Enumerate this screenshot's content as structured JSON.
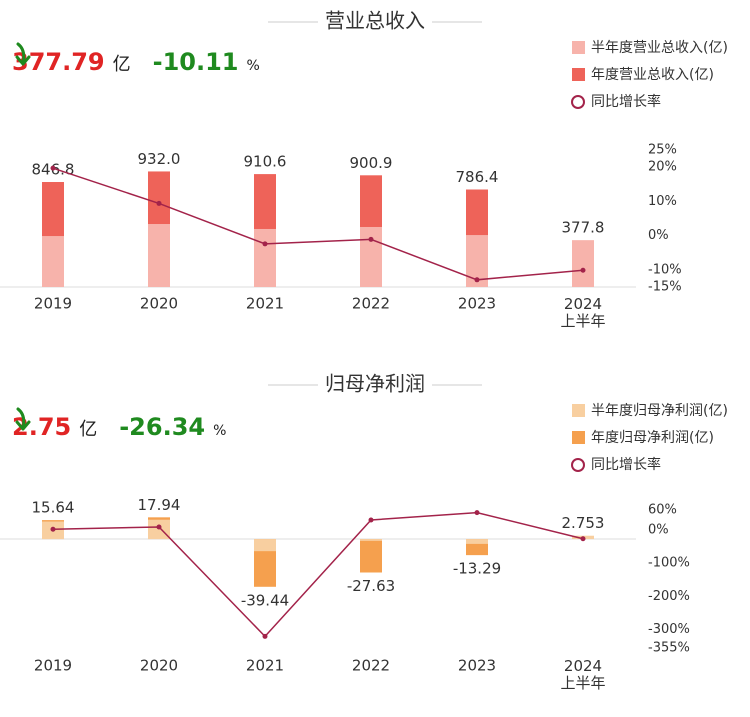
{
  "chart_data": [
    {
      "type": "bar",
      "title": "营业总收入",
      "headline": {
        "value": "377.79",
        "unit": "亿",
        "change": "-10.11",
        "change_unit": "%"
      },
      "categories": [
        "2019",
        "2020",
        "2021",
        "2022",
        "2023",
        "2024\n上半年"
      ],
      "ylim": [
        0,
        1105
      ],
      "y2lim": [
        -15,
        25
      ],
      "y2ticks": [
        {
          "value": 25,
          "label": "25%"
        },
        {
          "value": 20,
          "label": "20%"
        },
        {
          "value": 10,
          "label": "10%"
        },
        {
          "value": 0,
          "label": "0%"
        },
        {
          "value": -10,
          "label": "-10%"
        },
        {
          "value": -15,
          "label": "-15%"
        }
      ],
      "series": [
        {
          "name": "年度营业总收入(亿)",
          "type": "bar",
          "color": "#ee6359",
          "values": [
            846.8,
            932.0,
            910.6,
            900.9,
            786.4,
            null
          ],
          "value_labels": [
            "846.8",
            "932.0",
            "910.6",
            "900.9",
            "786.4",
            null
          ]
        },
        {
          "name": "半年度营业总收入(亿)",
          "type": "bar",
          "color": "#f7b3ab",
          "values": [
            411,
            508,
            468,
            484,
            419,
            377.79
          ],
          "value_labels": [
            null,
            null,
            null,
            null,
            null,
            "377.8"
          ]
        },
        {
          "name": "同比增长率",
          "type": "line",
          "axis": "y2",
          "color": "#a3234a",
          "values": [
            19.7,
            9.4,
            -2.4,
            -1.1,
            -12.9,
            -10.11
          ]
        }
      ]
    },
    {
      "type": "bar",
      "title": "归母净利润",
      "headline": {
        "value": "2.75",
        "unit": "亿",
        "change": "-26.34",
        "change_unit": "%"
      },
      "categories": [
        "2019",
        "2020",
        "2021",
        "2022",
        "2023",
        "2024\n上半年"
      ],
      "ylim": [
        -90,
        24
      ],
      "y2lim": [
        -355,
        60
      ],
      "y2ticks": [
        {
          "value": 60,
          "label": "60%"
        },
        {
          "value": 0,
          "label": "0%"
        },
        {
          "value": -100,
          "label": "-100%"
        },
        {
          "value": -200,
          "label": "-200%"
        },
        {
          "value": -300,
          "label": "-300%"
        },
        {
          "value": -355,
          "label": "-355%"
        }
      ],
      "series": [
        {
          "name": "年度归母净利润(亿)",
          "type": "bar",
          "color": "#f5a04e",
          "values": [
            15.64,
            17.94,
            -39.44,
            -27.63,
            -13.29,
            null
          ],
          "value_labels": [
            "15.64",
            "17.94",
            "-39.44",
            "-27.63",
            "-13.29",
            null
          ]
        },
        {
          "name": "半年度归母净利润(亿)",
          "type": "bar",
          "color": "#f8cfa0",
          "values": [
            14.5,
            16,
            -10,
            -1.5,
            -4,
            2.753
          ],
          "value_labels": [
            null,
            null,
            null,
            null,
            null,
            "2.753"
          ]
        },
        {
          "name": "同比增长率",
          "type": "line",
          "axis": "y2",
          "color": "#a3234a",
          "values": [
            2,
            9,
            -320,
            30,
            52,
            -26.34
          ]
        }
      ]
    }
  ]
}
